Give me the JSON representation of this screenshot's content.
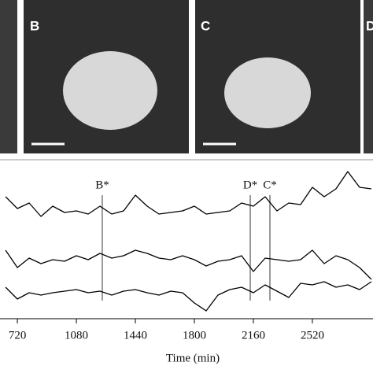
{
  "panels": [
    {
      "label": "B"
    },
    {
      "label": "C"
    },
    {
      "label": "D"
    }
  ],
  "chart_data": {
    "type": "line",
    "x": [
      648,
      720,
      792,
      864,
      936,
      1008,
      1080,
      1152,
      1224,
      1296,
      1368,
      1440,
      1512,
      1584,
      1656,
      1728,
      1800,
      1872,
      1944,
      2016,
      2088,
      2160,
      2232,
      2304,
      2376,
      2448,
      2520,
      2592,
      2664,
      2736,
      2808,
      2880
    ],
    "series": [
      {
        "color": "#000000",
        "values": [
          77.5,
          70,
          73.5,
          65,
          71.5,
          67.5,
          68.5,
          66.5,
          71.5,
          66.5,
          68.5,
          78.5,
          71.5,
          66.5,
          67.5,
          68.5,
          71.5,
          66.5,
          67.5,
          68.5,
          73.5,
          71.5,
          77.5,
          68.5,
          73.5,
          72.5,
          83.5,
          77.5,
          82.5,
          93.5,
          83.5,
          82.5
        ]
      },
      {
        "color": "#000000",
        "values": [
          43.5,
          32.5,
          38.5,
          35,
          37.5,
          36.5,
          40,
          37.5,
          41.5,
          38.5,
          40,
          43.5,
          41.5,
          38.5,
          37.5,
          40,
          37.5,
          33.5,
          36.5,
          37.5,
          40,
          30,
          38.5,
          37.5,
          36.5,
          37.5,
          43.5,
          35,
          40,
          37.5,
          32.5,
          25
        ]
      },
      {
        "color": "#000000",
        "values": [
          20,
          12.5,
          16.5,
          15,
          16.5,
          17.5,
          18.5,
          16.5,
          17.5,
          15,
          17.5,
          18.5,
          16.5,
          15,
          17.5,
          16.5,
          10,
          5,
          15,
          18.5,
          20,
          16.5,
          21.5,
          17.5,
          13.5,
          22.5,
          21.5,
          23.5,
          20,
          21.5,
          18.5,
          23.5
        ]
      }
    ],
    "annotations": [
      {
        "label": "B*",
        "x": 1238
      },
      {
        "label": "D*",
        "x": 2141
      },
      {
        "label": "C*",
        "x": 2261
      }
    ],
    "xlim": [
      614,
      2890
    ],
    "xticks": [
      720,
      1080,
      1440,
      1800,
      2160,
      2520
    ],
    "ylim": [
      0,
      100
    ],
    "xlabel": "Time (min)"
  }
}
